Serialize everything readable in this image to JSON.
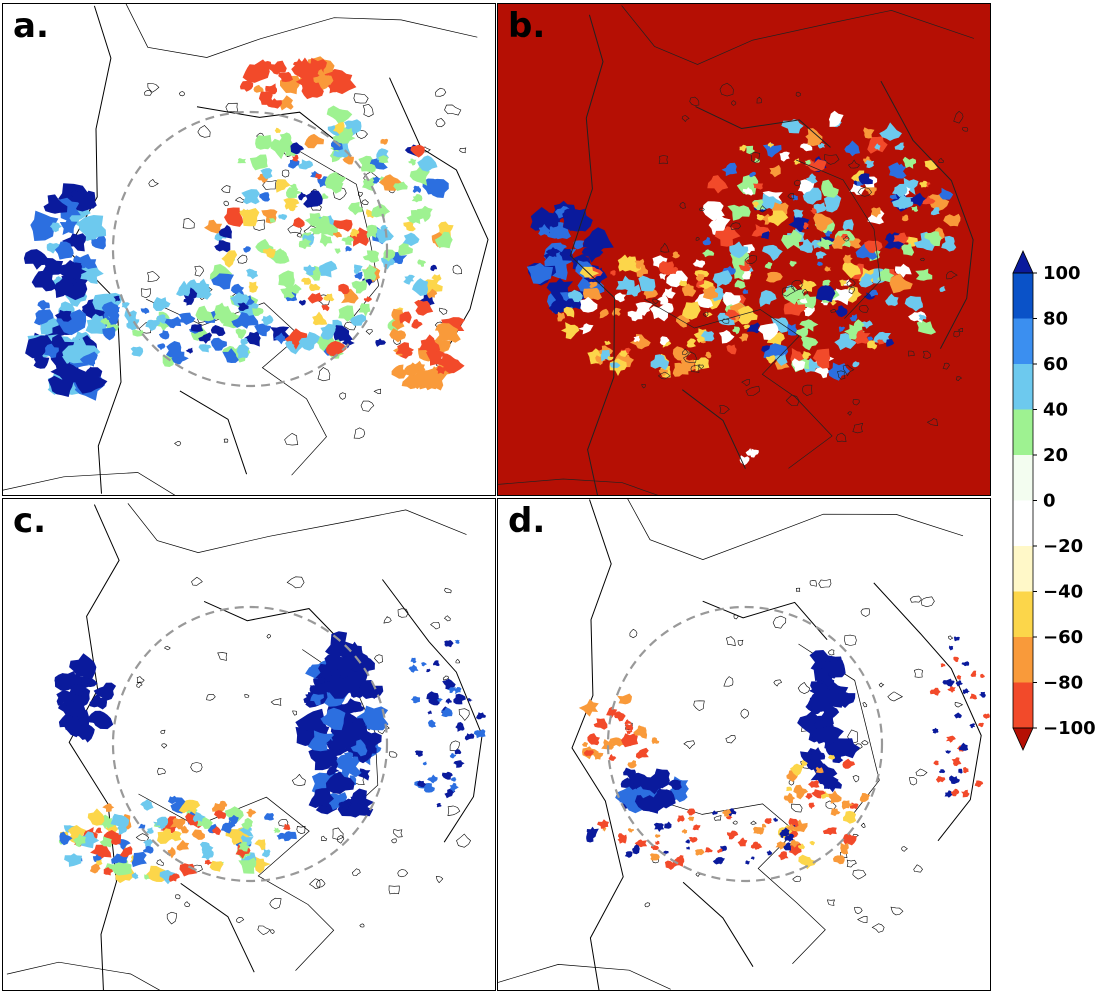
{
  "panels": [
    {
      "id": "a",
      "label": "a.",
      "background": "#ffffff",
      "show_circle": true
    },
    {
      "id": "b",
      "label": "b.",
      "background": "#b50f04",
      "show_circle": false
    },
    {
      "id": "c",
      "label": "c.",
      "background": "#ffffff",
      "show_circle": true
    },
    {
      "id": "d",
      "label": "d.",
      "background": "#ffffff",
      "show_circle": true
    }
  ],
  "colorbar": {
    "tick_labels": [
      "100",
      "80",
      "60",
      "40",
      "20",
      "0",
      "−20",
      "−40",
      "−60",
      "−80",
      "−100"
    ],
    "bins": [
      {
        "from": 80,
        "to": 100,
        "color": "#0a52c8"
      },
      {
        "from": 60,
        "to": 80,
        "color": "#3b8ff0"
      },
      {
        "from": 40,
        "to": 60,
        "color": "#6dc9ee"
      },
      {
        "from": 20,
        "to": 40,
        "color": "#9ef291"
      },
      {
        "from": 0,
        "to": 20,
        "color": "#f3fdf0"
      },
      {
        "from": -20,
        "to": 0,
        "color": "#ffffff"
      },
      {
        "from": -40,
        "to": -20,
        "color": "#fff8c8"
      },
      {
        "from": -60,
        "to": -40,
        "color": "#fcd64a"
      },
      {
        "from": -80,
        "to": -60,
        "color": "#f99a3a"
      },
      {
        "from": -100,
        "to": -80,
        "color": "#f24a2a"
      }
    ],
    "over_color": "#0a1a9c",
    "under_color": "#b50f04"
  },
  "colors": {
    "deep_blue": "#0a1a9c",
    "blue": "#2c6fe0",
    "light_blue": "#6dc9ee",
    "green": "#9ef291",
    "yellow": "#fcd64a",
    "orange": "#f99a3a",
    "red": "#f24a2a",
    "dark_red": "#b50f04",
    "coast": "#000000",
    "circle": "#999999"
  }
}
